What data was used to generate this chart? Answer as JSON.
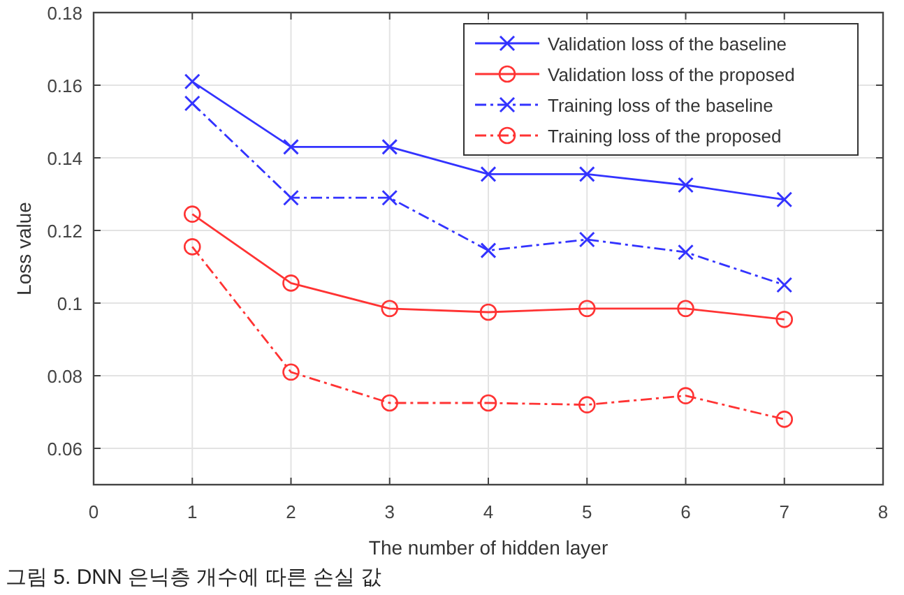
{
  "chart_data": {
    "type": "line",
    "xlabel": "The number of hidden layer",
    "ylabel": "Loss value",
    "x": [
      1,
      2,
      3,
      4,
      5,
      6,
      7
    ],
    "xlim": [
      0,
      8
    ],
    "xticks": [
      0,
      1,
      2,
      3,
      4,
      5,
      6,
      7,
      8
    ],
    "ylim": [
      0.05,
      0.18
    ],
    "yticks": [
      0.06,
      0.08,
      {
        "value": 0.1,
        "label": "0.1"
      },
      0.12,
      0.14,
      0.16,
      0.18
    ],
    "grid": true,
    "legend": "top right",
    "series": [
      {
        "name": "Validation loss of the baseline",
        "color": "#3333ff",
        "marker": "cross",
        "line_style": "solid",
        "values": [
          0.161,
          0.143,
          0.143,
          0.1355,
          0.1355,
          0.1325,
          0.1285
        ]
      },
      {
        "name": "Validation loss of the proposed",
        "color": "#ff3333",
        "marker": "circle",
        "line_style": "solid",
        "values": [
          0.1245,
          0.1055,
          0.0985,
          0.0975,
          0.0985,
          0.0985,
          0.0955
        ]
      },
      {
        "name": "Training loss of the baseline",
        "color": "#3333ff",
        "marker": "cross",
        "line_style": "dashdot",
        "values": [
          0.155,
          0.129,
          0.129,
          0.1145,
          0.1175,
          0.114,
          0.105
        ]
      },
      {
        "name": "Training loss of the proposed",
        "color": "#ff3333",
        "marker": "circle",
        "line_style": "dashdot",
        "values": [
          0.1155,
          0.081,
          0.0725,
          0.0725,
          0.072,
          0.0745,
          0.068
        ]
      }
    ],
    "annotations": [
      "그림 5. DNN 은닉층 개수에 따른 손실 값"
    ]
  }
}
